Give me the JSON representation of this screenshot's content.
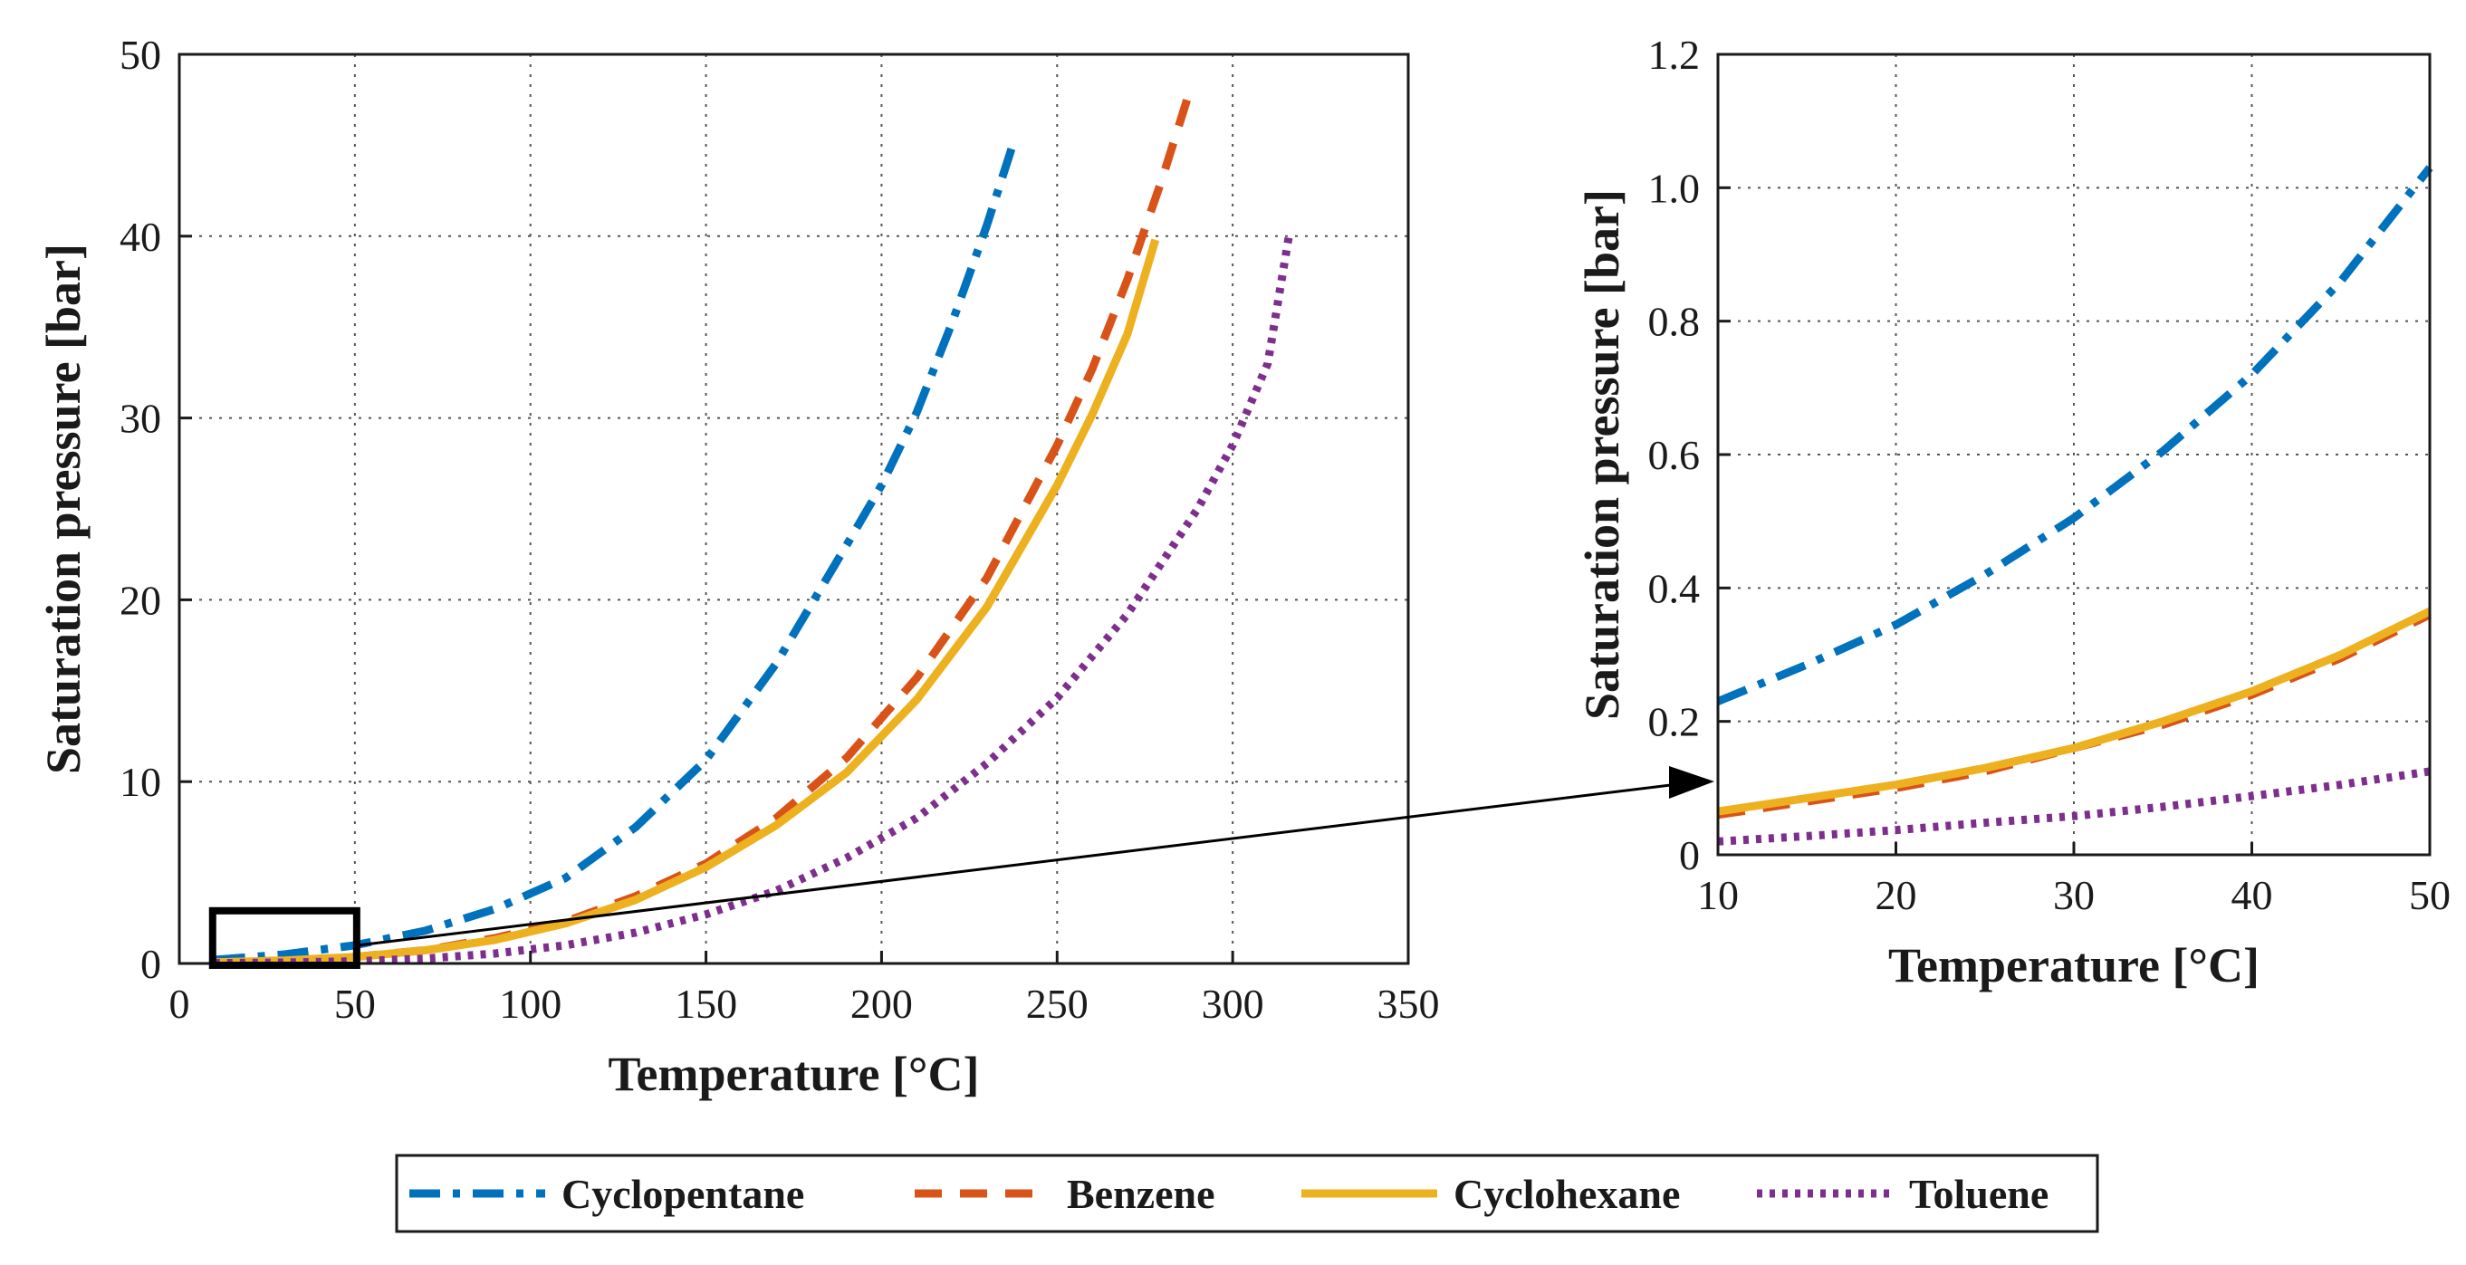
{
  "chart_data": [
    {
      "type": "line",
      "xlabel": "Temperature [°C]",
      "ylabel": "Saturation pressure [bar]",
      "xlim": [
        0,
        350
      ],
      "ylim": [
        0,
        50
      ],
      "xticks": [
        "0",
        "50",
        "100",
        "150",
        "200",
        "250",
        "300",
        "350"
      ],
      "yticks": [
        "0",
        "10",
        "20",
        "30",
        "40",
        "50"
      ],
      "grid": true,
      "zoom_box": {
        "x": [
          10,
          50
        ],
        "y": [
          0,
          2.5
        ]
      },
      "series": [
        {
          "name": "Cyclopentane",
          "color": "#0072BD",
          "style": "dashdot",
          "x": [
            10,
            30,
            50,
            70,
            90,
            110,
            130,
            150,
            170,
            190,
            200,
            210,
            220,
            230,
            237
          ],
          "y": [
            0.2,
            0.5,
            1.0,
            1.8,
            3.0,
            4.7,
            7.5,
            11.2,
            16.5,
            23.0,
            26.3,
            30.3,
            35.2,
            40.6,
            44.8
          ]
        },
        {
          "name": "Benzene",
          "color": "#D95319",
          "style": "dashed",
          "x": [
            10,
            30,
            50,
            70,
            90,
            110,
            130,
            150,
            170,
            190,
            210,
            230,
            250,
            260,
            270,
            280,
            287
          ],
          "y": [
            0.06,
            0.16,
            0.36,
            0.73,
            1.4,
            2.3,
            3.7,
            5.5,
            8.0,
            11.3,
            15.7,
            21.2,
            28.5,
            32.7,
            37.6,
            43.2,
            47.5
          ]
        },
        {
          "name": "Cyclohexane",
          "color": "#EDB120",
          "style": "solid",
          "x": [
            10,
            30,
            50,
            70,
            90,
            110,
            130,
            150,
            170,
            190,
            210,
            230,
            250,
            260,
            270,
            278
          ],
          "y": [
            0.06,
            0.16,
            0.36,
            0.72,
            1.3,
            2.2,
            3.5,
            5.3,
            7.6,
            10.5,
            14.5,
            19.6,
            26.3,
            30.2,
            34.6,
            39.8
          ]
        },
        {
          "name": "Toluene",
          "color": "#7E2F8E",
          "style": "dotted",
          "x": [
            10,
            30,
            50,
            70,
            90,
            110,
            130,
            150,
            170,
            190,
            210,
            230,
            250,
            270,
            290,
            300,
            310,
            316
          ],
          "y": [
            0.02,
            0.05,
            0.12,
            0.27,
            0.55,
            1.0,
            1.7,
            2.7,
            4.0,
            5.8,
            8.0,
            11.0,
            14.6,
            19.2,
            25.0,
            28.5,
            33.0,
            40.0
          ]
        }
      ]
    },
    {
      "type": "line",
      "xlabel": "Temperature [°C]",
      "ylabel": "Saturation pressure [bar]",
      "xlim": [
        10,
        50
      ],
      "ylim": [
        0,
        1.2
      ],
      "xticks": [
        "10",
        "20",
        "30",
        "40",
        "50"
      ],
      "yticks": [
        "0",
        "0.2",
        "0.4",
        "0.6",
        "0.8",
        "1.0",
        "1.2"
      ],
      "grid": true,
      "series": [
        {
          "name": "Cyclopentane",
          "color": "#0072BD",
          "style": "dashdot",
          "x": [
            10,
            15,
            20,
            25,
            30,
            35,
            40,
            45,
            50
          ],
          "y": [
            0.23,
            0.285,
            0.345,
            0.42,
            0.505,
            0.605,
            0.72,
            0.86,
            1.03
          ]
        },
        {
          "name": "Benzene",
          "color": "#D95319",
          "style": "dashed",
          "x": [
            10,
            15,
            20,
            25,
            30,
            35,
            40,
            45,
            50
          ],
          "y": [
            0.06,
            0.08,
            0.1,
            0.125,
            0.16,
            0.195,
            0.24,
            0.295,
            0.36
          ]
        },
        {
          "name": "Cyclohexane",
          "color": "#EDB120",
          "style": "solid",
          "x": [
            10,
            15,
            20,
            25,
            30,
            35,
            40,
            45,
            50
          ],
          "y": [
            0.065,
            0.085,
            0.105,
            0.13,
            0.16,
            0.2,
            0.245,
            0.3,
            0.365
          ]
        },
        {
          "name": "Toluene",
          "color": "#7E2F8E",
          "style": "dotted",
          "x": [
            10,
            15,
            20,
            25,
            30,
            35,
            40,
            45,
            50
          ],
          "y": [
            0.02,
            0.028,
            0.037,
            0.048,
            0.058,
            0.072,
            0.088,
            0.105,
            0.125
          ]
        }
      ]
    }
  ],
  "legend": {
    "placement": "bottom-center",
    "items": [
      "Cyclopentane",
      "Benzene",
      "Cyclohexane",
      "Toluene"
    ]
  }
}
